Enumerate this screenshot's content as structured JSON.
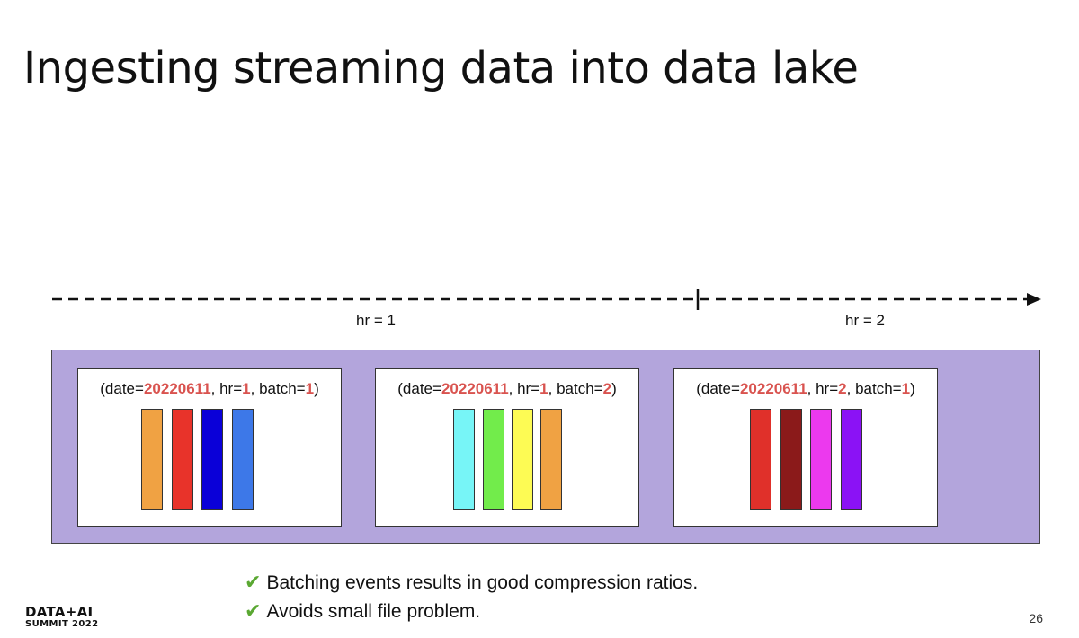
{
  "slide": {
    "title": "Ingesting streaming data into data lake",
    "page_number": "26"
  },
  "timeline": {
    "segments": [
      {
        "label": "hr = 1"
      },
      {
        "label": "hr = 2"
      }
    ]
  },
  "partitions": [
    {
      "label_prefix": "(date=",
      "date": "20220611",
      "hr_prefix": ", hr=",
      "hr": "1",
      "batch_prefix": ", batch=",
      "batch": "1",
      "suffix": ")",
      "files": [
        "#f0a243",
        "#e8332a",
        "#0a00d8",
        "#3d78e8"
      ]
    },
    {
      "label_prefix": "(date=",
      "date": "20220611",
      "hr_prefix": ", hr=",
      "hr": "1",
      "batch_prefix": ", batch=",
      "batch": "2",
      "suffix": ")",
      "files": [
        "#77f5f7",
        "#72ec4b",
        "#fdfb54",
        "#f0a243"
      ]
    },
    {
      "label_prefix": "(date=",
      "date": "20220611",
      "hr_prefix": ", hr=",
      "hr": "2",
      "batch_prefix": ", batch=",
      "batch": "1",
      "suffix": ")",
      "files": [
        "#e0302a",
        "#8b1a1a",
        "#ec39ee",
        "#8b12f5"
      ]
    }
  ],
  "bullets": [
    {
      "icon": "check-icon",
      "text": "Batching events results in good compression ratios."
    },
    {
      "icon": "check-icon",
      "text": "Avoids small file problem."
    }
  ],
  "logo": {
    "main": "DATA+AI",
    "sub": "SUMMIT 2022"
  }
}
